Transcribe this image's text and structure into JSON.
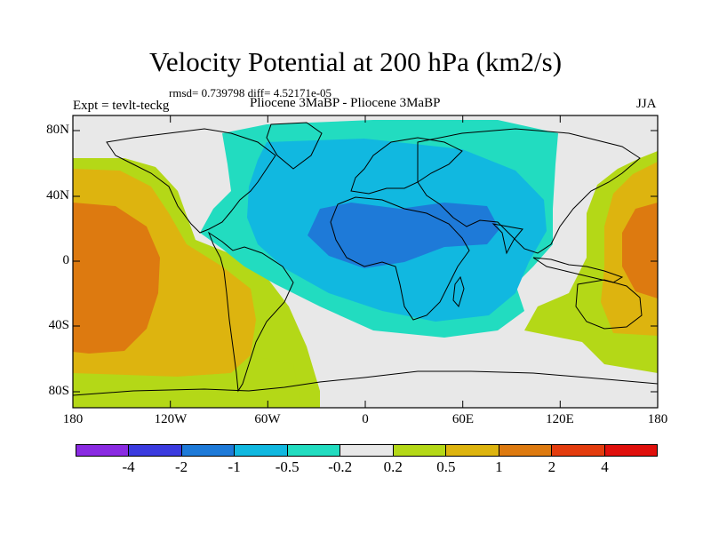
{
  "title": "Velocity Potential at 200 hPa (km2/s)",
  "stats": "rmsd= 0.739798 diff= 4.52171e-05",
  "expt": "Expt = tevlt-teckg",
  "subtitle": "Pliocene   3MaBP - Pliocene   3MaBP",
  "season": "JJA",
  "map": {
    "lat_ticks": [
      "80N",
      "40N",
      "0",
      "40S",
      "80S"
    ],
    "lon_ticks": [
      "180",
      "120W",
      "60W",
      "0",
      "60E",
      "120E",
      "180"
    ]
  },
  "colorbar": {
    "colors": [
      "#8a2be2",
      "#3b3bdf",
      "#1e7ad8",
      "#11b8e0",
      "#22dcc0",
      "#e8e8e8",
      "#b4d817",
      "#ddb40f",
      "#dd7a10",
      "#e33c0e",
      "#e0100c"
    ],
    "labels": [
      "-4",
      "-2",
      "-1",
      "-0.5",
      "-0.2",
      "0.2",
      "0.5",
      "1",
      "2",
      "4"
    ]
  }
}
